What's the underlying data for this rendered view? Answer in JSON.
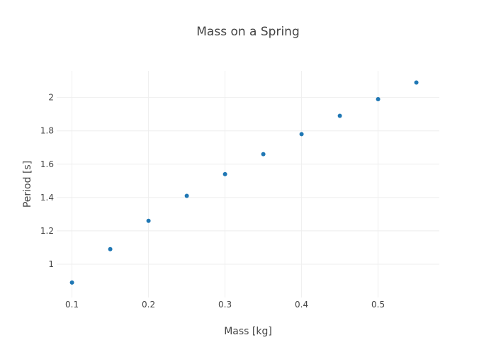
{
  "chart_data": {
    "type": "scatter",
    "title": "Mass on a Spring",
    "xlabel": "Mass [kg]",
    "ylabel": "Period [s]",
    "xlim": [
      0.08,
      0.58
    ],
    "ylim": [
      0.8,
      2.16
    ],
    "xticks": [
      0.1,
      0.2,
      0.3,
      0.4,
      0.5
    ],
    "yticks": [
      1,
      1.2,
      1.4,
      1.6,
      1.8,
      2
    ],
    "grid": true,
    "legend": "none",
    "series": [
      {
        "x": [
          0.1,
          0.15,
          0.2,
          0.25,
          0.3,
          0.35,
          0.4,
          0.45,
          0.5,
          0.55
        ],
        "y": [
          0.89,
          1.09,
          1.26,
          1.41,
          1.54,
          1.66,
          1.78,
          1.89,
          1.99,
          2.09
        ],
        "color": "#1f77b4"
      }
    ]
  },
  "colors": {
    "title": "#444444",
    "axis_text": "#444444",
    "grid": "#eeeeee"
  }
}
